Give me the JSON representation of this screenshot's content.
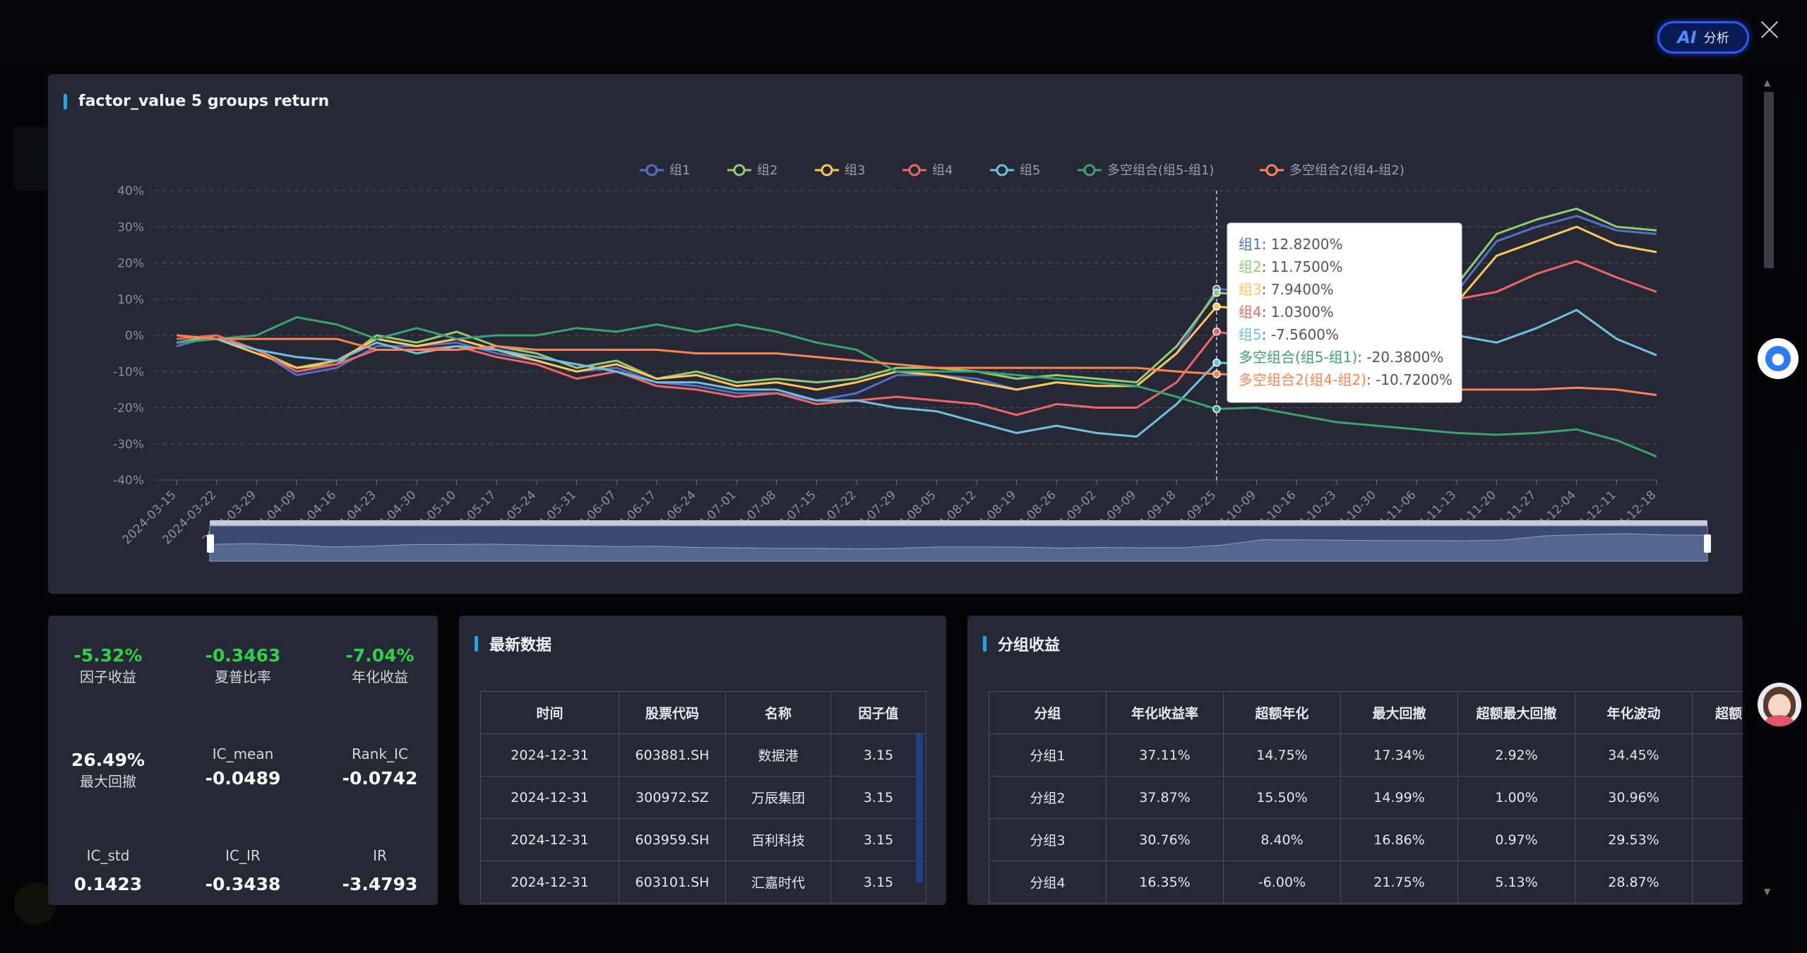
{
  "ai_button": {
    "icon": "AI",
    "label": "分析"
  },
  "chart": {
    "title": "factor_value 5 groups return"
  },
  "chart_data": {
    "type": "line",
    "title": "factor_value 5 groups return",
    "ylim": [
      -40,
      40
    ],
    "y_ticks": [
      "40%",
      "30%",
      "20%",
      "10%",
      "0%",
      "-10%",
      "-20%",
      "-30%",
      "-40%"
    ],
    "x_ticks": [
      "2024-03-15",
      "2024-03-22",
      "2024-03-29",
      "2024-04-09",
      "2024-04-16",
      "2024-04-23",
      "2024-04-30",
      "2024-05-10",
      "2024-05-17",
      "2024-05-24",
      "2024-05-31",
      "2024-06-07",
      "2024-06-17",
      "2024-06-24",
      "2024-07-01",
      "2024-07-08",
      "2024-07-15",
      "2024-07-22",
      "2024-07-29",
      "2024-08-05",
      "2024-08-12",
      "2024-08-19",
      "2024-08-26",
      "2024-09-02",
      "2024-09-09",
      "2024-09-18",
      "2024-09-25",
      "2024-10-09",
      "2024-10-16",
      "2024-10-23",
      "2024-10-30",
      "2024-11-06",
      "2024-11-13",
      "2024-11-20",
      "2024-11-27",
      "2024-12-04",
      "2024-12-11",
      "2024-12-18"
    ],
    "grid": true,
    "legend_position": "top-center",
    "series": [
      {
        "name": "组1",
        "color": "#5470c6",
        "values": [
          -3,
          0,
          -4,
          -11,
          -9,
          -3,
          -3,
          -2,
          -5,
          -7,
          -10,
          -9,
          -13,
          -14,
          -16,
          -16,
          -18,
          -16,
          -11,
          -11,
          -12,
          -15,
          -13,
          -14,
          -14,
          -5,
          12.82,
          12,
          11,
          10,
          10,
          9,
          12,
          26,
          30,
          33,
          29,
          28
        ]
      },
      {
        "name": "组2",
        "color": "#91cc75",
        "values": [
          -2,
          0,
          -4,
          -9,
          -8,
          0,
          -2,
          1,
          -3,
          -5,
          -9,
          -7,
          -12,
          -10,
          -13,
          -12,
          -13,
          -12,
          -9,
          -9,
          -10,
          -12,
          -11,
          -12,
          -13,
          -3,
          11.75,
          11,
          10,
          10,
          11,
          10,
          14,
          28,
          32,
          35,
          30,
          29
        ]
      },
      {
        "name": "组3",
        "color": "#fac858",
        "values": [
          -2,
          -1,
          -5,
          -9,
          -7,
          -1,
          -3,
          -1,
          -4,
          -7,
          -10,
          -8,
          -12,
          -11,
          -14,
          -13,
          -15,
          -13,
          -10,
          -11,
          -13,
          -15,
          -13,
          -14,
          -14,
          -5,
          7.94,
          7,
          7,
          6,
          7,
          7,
          9,
          22,
          26,
          30,
          25,
          23
        ]
      },
      {
        "name": "组4",
        "color": "#ee6666",
        "values": [
          -1,
          0,
          -4,
          -10,
          -8,
          -4,
          -4,
          -3,
          -6,
          -8,
          -12,
          -10,
          -14,
          -15,
          -17,
          -16,
          -19,
          -18,
          -17,
          -18,
          -19,
          -22,
          -19,
          -20,
          -20,
          -13,
          1.03,
          -1,
          0,
          1,
          2,
          3,
          10,
          12,
          17,
          20.5,
          16,
          12
        ]
      },
      {
        "name": "组5",
        "color": "#73c0de",
        "values": [
          -2,
          -1,
          -4,
          -6,
          -7,
          -2,
          -5,
          -3,
          -4,
          -6,
          -8,
          -10,
          -13,
          -13,
          -15,
          -15,
          -18,
          -18,
          -20,
          -21,
          -24,
          -27,
          -25,
          -27,
          -28,
          -19,
          -7.56,
          -8,
          -6,
          -3,
          -4,
          -2,
          0,
          -2,
          2,
          7,
          -1,
          -5.5
        ]
      },
      {
        "name": "多空组合(组5-组1)",
        "color": "#3ba272",
        "values": [
          -2,
          -1,
          0,
          5,
          3,
          -1,
          2,
          -1,
          0,
          0,
          2,
          1,
          3,
          1,
          3,
          1,
          -2,
          -4,
          -10,
          -10,
          -10,
          -11,
          -12,
          -13,
          -14,
          -17,
          -20.38,
          -20,
          -22,
          -24,
          -25,
          -26,
          -27,
          -27.5,
          -27,
          -26,
          -29,
          -33.5
        ]
      },
      {
        "name": "多空组合2(组4-组2)",
        "color": "#fc8452",
        "values": [
          0,
          -1,
          -1,
          -1,
          -1,
          -4,
          -4,
          -4,
          -3,
          -4,
          -4,
          -4,
          -4,
          -5,
          -5,
          -5,
          -6,
          -7,
          -8,
          -9,
          -9,
          -9,
          -9,
          -9,
          -9,
          -10,
          -10.72,
          -11,
          -12,
          -13,
          -14,
          -14,
          -15,
          -15,
          -15,
          -14.5,
          -15,
          -16.5
        ]
      }
    ],
    "tooltip": {
      "index": 26,
      "rows": [
        {
          "name": "组1",
          "value": "12.8200%"
        },
        {
          "name": "组2",
          "value": "11.7500%"
        },
        {
          "name": "组3",
          "value": "7.9400%"
        },
        {
          "name": "组4",
          "value": "1.0300%"
        },
        {
          "name": "组5",
          "value": "-7.5600%"
        },
        {
          "name": "多空组合(组5-组1)",
          "value": "-20.3800%"
        },
        {
          "name": "多空组合2(组4-组2)",
          "value": "-10.7200%"
        }
      ]
    }
  },
  "stats": {
    "factor_return": {
      "value": "-5.32%",
      "label": "因子收益"
    },
    "sharpe": {
      "value": "-0.3463",
      "label": "夏普比率"
    },
    "annual_return": {
      "value": "-7.04%",
      "label": "年化收益"
    },
    "max_drawdown": {
      "value": "26.49%",
      "label": "最大回撤"
    },
    "ic_mean": {
      "value": "-0.0489",
      "label": "IC_mean"
    },
    "rank_ic": {
      "value": "-0.0742",
      "label": "Rank_IC"
    },
    "ic_std": {
      "value": "0.1423",
      "label": "IC_std"
    },
    "ic_ir": {
      "value": "-0.3438",
      "label": "IC_IR"
    },
    "ir": {
      "value": "-3.4793",
      "label": "IR"
    }
  },
  "latest": {
    "title": "最新数据",
    "columns": [
      "时间",
      "股票代码",
      "名称",
      "因子值"
    ],
    "rows": [
      [
        "2024-12-31",
        "603881.SH",
        "数据港",
        "3.15"
      ],
      [
        "2024-12-31",
        "300972.SZ",
        "万辰集团",
        "3.15"
      ],
      [
        "2024-12-31",
        "603959.SH",
        "百利科技",
        "3.15"
      ],
      [
        "2024-12-31",
        "603101.SH",
        "汇嘉时代",
        "3.15"
      ]
    ]
  },
  "groups": {
    "title": "分组收益",
    "columns": [
      "分组",
      "年化收益率",
      "超额年化",
      "最大回撤",
      "超额最大回撤",
      "年化波动",
      "超额"
    ],
    "rows": [
      [
        "分组1",
        "37.11%",
        "14.75%",
        "17.34%",
        "2.92%",
        "34.45%",
        ""
      ],
      [
        "分组2",
        "37.87%",
        "15.50%",
        "14.99%",
        "1.00%",
        "30.96%",
        ""
      ],
      [
        "分组3",
        "30.76%",
        "8.40%",
        "16.86%",
        "0.97%",
        "29.53%",
        ""
      ],
      [
        "分组4",
        "16.35%",
        "-6.00%",
        "21.75%",
        "5.13%",
        "28.87%",
        ""
      ]
    ]
  }
}
